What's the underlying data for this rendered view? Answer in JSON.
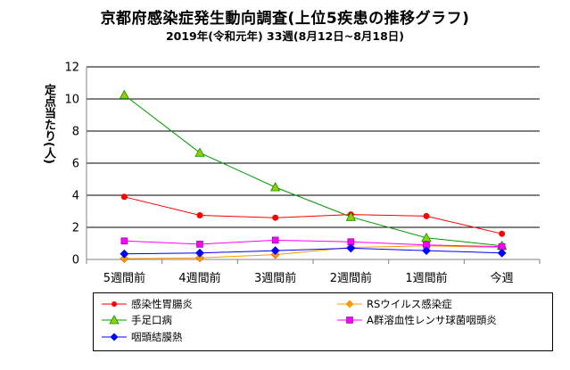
{
  "title": "京都府感染症発生動向調査(上位5疾患の推移グラフ)",
  "subtitle": "2019年(令和元年) 33週(8月12日~8月18日)",
  "chart_data": {
    "type": "line",
    "ylabel": "定点当たり(人)",
    "ylim": [
      0,
      12
    ],
    "yticks": [
      0,
      2,
      4,
      6,
      8,
      10,
      12
    ],
    "grid": true,
    "legend_position": "bottom",
    "categories": [
      "5週間前",
      "4週間前",
      "3週間前",
      "2週間前",
      "1週間前",
      "今週"
    ],
    "series": [
      {
        "name": "感染性胃腸炎",
        "color": "#ff0000",
        "marker": "circle",
        "values": [
          3.9,
          2.75,
          2.6,
          2.8,
          2.7,
          1.6
        ]
      },
      {
        "name": "RSウイルス感染症",
        "color": "#ff9900",
        "marker": "diamond",
        "values": [
          0.05,
          0.1,
          0.3,
          0.75,
          0.85,
          0.75
        ]
      },
      {
        "name": "手足口病",
        "color": "#009900",
        "marker": "triangle",
        "values": [
          10.25,
          6.65,
          4.5,
          2.65,
          1.35,
          0.85
        ]
      },
      {
        "name": "A群溶血性レンサ球菌咽頭炎",
        "color": "#ff00ff",
        "marker": "square",
        "values": [
          1.15,
          0.95,
          1.2,
          1.1,
          0.9,
          0.8
        ]
      },
      {
        "name": "咽頭結膜熱",
        "color": "#0000ff",
        "marker": "diamond",
        "values": [
          0.35,
          0.4,
          0.55,
          0.7,
          0.55,
          0.4
        ]
      }
    ]
  }
}
